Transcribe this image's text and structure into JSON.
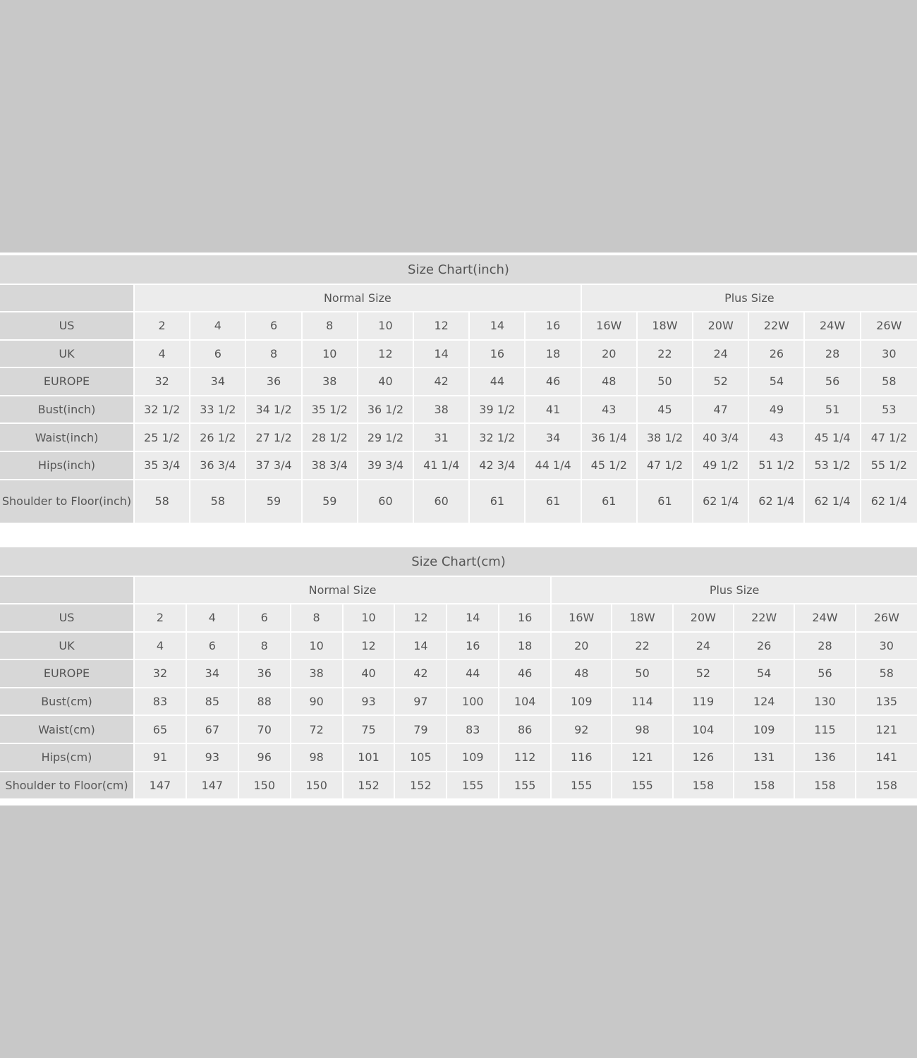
{
  "inch_chart": {
    "title": "Size Chart(inch)",
    "groups": {
      "normal": "Normal Size",
      "plus": "Plus Size"
    },
    "rows": [
      {
        "label": "US",
        "values": [
          "2",
          "4",
          "6",
          "8",
          "10",
          "12",
          "14",
          "16",
          "16W",
          "18W",
          "20W",
          "22W",
          "24W",
          "26W"
        ]
      },
      {
        "label": "UK",
        "values": [
          "4",
          "6",
          "8",
          "10",
          "12",
          "14",
          "16",
          "18",
          "20",
          "22",
          "24",
          "26",
          "28",
          "30"
        ]
      },
      {
        "label": "EUROPE",
        "values": [
          "32",
          "34",
          "36",
          "38",
          "40",
          "42",
          "44",
          "46",
          "48",
          "50",
          "52",
          "54",
          "56",
          "58"
        ]
      },
      {
        "label": "Bust(inch)",
        "values": [
          "32 1/2",
          "33 1/2",
          "34 1/2",
          "35 1/2",
          "36 1/2",
          "38",
          "39 1/2",
          "41",
          "43",
          "45",
          "47",
          "49",
          "51",
          "53"
        ]
      },
      {
        "label": "Waist(inch)",
        "values": [
          "25 1/2",
          "26 1/2",
          "27 1/2",
          "28 1/2",
          "29 1/2",
          "31",
          "32 1/2",
          "34",
          "36 1/4",
          "38 1/2",
          "40 3/4",
          "43",
          "45 1/4",
          "47 1/2"
        ]
      },
      {
        "label": "Hips(inch)",
        "values": [
          "35 3/4",
          "36 3/4",
          "37 3/4",
          "38 3/4",
          "39 3/4",
          "41 1/4",
          "42 3/4",
          "44 1/4",
          "45 1/2",
          "47 1/2",
          "49 1/2",
          "51 1/2",
          "53 1/2",
          "55 1/2"
        ]
      },
      {
        "label": "Shoulder to Floor(inch)",
        "values": [
          "58",
          "58",
          "59",
          "59",
          "60",
          "60",
          "61",
          "61",
          "61",
          "61",
          "62 1/4",
          "62 1/4",
          "62 1/4",
          "62 1/4"
        ]
      }
    ]
  },
  "cm_chart": {
    "title": "Size Chart(cm)",
    "groups": {
      "normal": "Normal Size",
      "plus": "Plus Size"
    },
    "rows": [
      {
        "label": "US",
        "values": [
          "2",
          "4",
          "6",
          "8",
          "10",
          "12",
          "14",
          "16",
          "16W",
          "18W",
          "20W",
          "22W",
          "24W",
          "26W"
        ]
      },
      {
        "label": "UK",
        "values": [
          "4",
          "6",
          "8",
          "10",
          "12",
          "14",
          "16",
          "18",
          "20",
          "22",
          "24",
          "26",
          "28",
          "30"
        ]
      },
      {
        "label": "EUROPE",
        "values": [
          "32",
          "34",
          "36",
          "38",
          "40",
          "42",
          "44",
          "46",
          "48",
          "50",
          "52",
          "54",
          "56",
          "58"
        ]
      },
      {
        "label": "Bust(cm)",
        "values": [
          "83",
          "85",
          "88",
          "90",
          "93",
          "97",
          "100",
          "104",
          "109",
          "114",
          "119",
          "124",
          "130",
          "135"
        ]
      },
      {
        "label": "Waist(cm)",
        "values": [
          "65",
          "67",
          "70",
          "72",
          "75",
          "79",
          "83",
          "86",
          "92",
          "98",
          "104",
          "109",
          "115",
          "121"
        ]
      },
      {
        "label": "Hips(cm)",
        "values": [
          "91",
          "93",
          "96",
          "98",
          "101",
          "105",
          "109",
          "112",
          "116",
          "121",
          "126",
          "131",
          "136",
          "141"
        ]
      },
      {
        "label": "Shoulder to Floor(cm)",
        "values": [
          "147",
          "147",
          "150",
          "150",
          "152",
          "152",
          "155",
          "155",
          "155",
          "155",
          "158",
          "158",
          "158",
          "158"
        ]
      }
    ]
  },
  "colors": {
    "background": "#c8c8c8",
    "title_row": "#dadada",
    "label_column": "#d7d7d7",
    "cell": "#ececec",
    "text": "#555555"
  }
}
